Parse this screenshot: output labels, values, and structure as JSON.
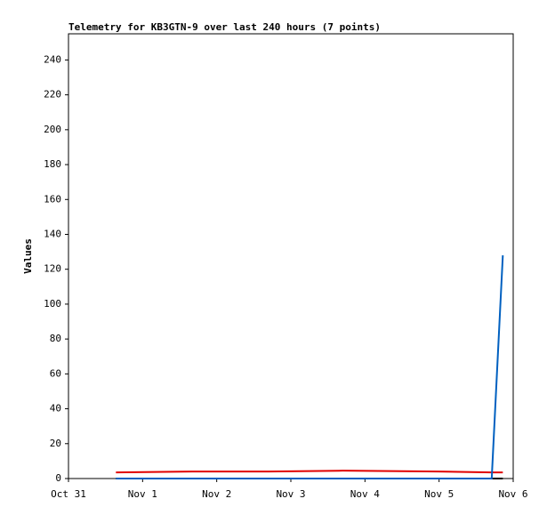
{
  "chart_data": {
    "type": "line",
    "title": "Telemetry for KB3GTN-9 over last 240 hours (7 points)",
    "y_label": "Values",
    "x": [
      0.64,
      1.67,
      2.7,
      3.7,
      4.99,
      5.71,
      5.86
    ],
    "series": [
      {
        "color": "#000000",
        "values": [
          0,
          0,
          0,
          0,
          0,
          0,
          0
        ]
      },
      {
        "color": "#e00000",
        "values": [
          3.5,
          4,
          4,
          4.5,
          4,
          3.5,
          3.5
        ]
      },
      {
        "color": "#0060c0",
        "values": [
          0,
          0,
          0,
          0,
          0,
          0,
          128
        ]
      }
    ],
    "xlim": [
      0,
      6
    ],
    "xticks": [
      {
        "value": 0,
        "label": "Oct 31"
      },
      {
        "value": 1,
        "label": "Nov 1"
      },
      {
        "value": 2,
        "label": "Nov 2"
      },
      {
        "value": 3,
        "label": "Nov 3"
      },
      {
        "value": 4,
        "label": "Nov 4"
      },
      {
        "value": 5,
        "label": "Nov 5"
      },
      {
        "value": 6,
        "label": "Nov 6"
      }
    ],
    "ylim": [
      0,
      255
    ],
    "yticks": [
      0,
      20,
      40,
      60,
      80,
      100,
      120,
      140,
      160,
      180,
      200,
      220,
      240
    ]
  }
}
